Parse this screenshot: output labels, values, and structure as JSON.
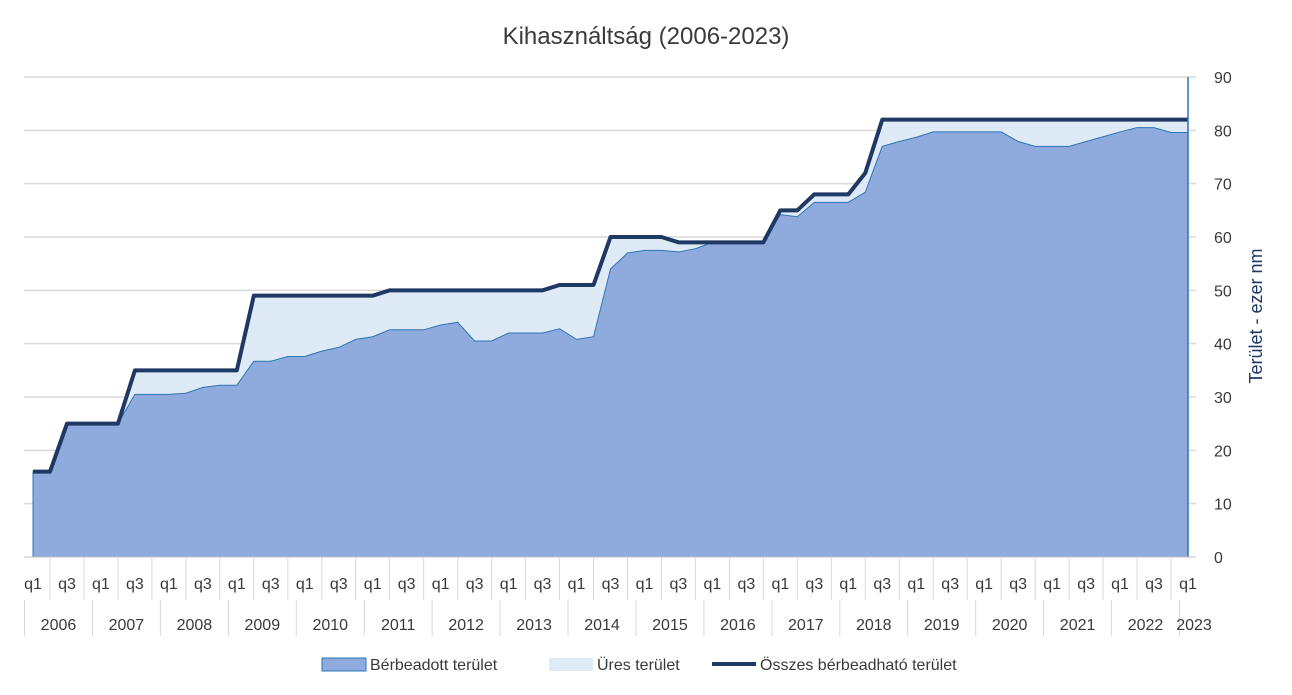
{
  "chart_data": {
    "type": "area",
    "title": "Kihasználtság (2006-2023)",
    "ylabel": "Terület - ezer nm",
    "xlabel": "",
    "ylim": [
      0,
      90
    ],
    "yticks": [
      0,
      10,
      20,
      30,
      40,
      50,
      60,
      70,
      80,
      90
    ],
    "grid": true,
    "legend_position": "bottom",
    "y_axis_side": "right",
    "years": [
      "2006",
      "2007",
      "2008",
      "2009",
      "2010",
      "2011",
      "2012",
      "2013",
      "2014",
      "2015",
      "2016",
      "2017",
      "2018",
      "2019",
      "2020",
      "2021",
      "2022",
      "2023"
    ],
    "quarter_labels": [
      "q1",
      "q3"
    ],
    "x": [
      "2006 q1",
      "2006 q2",
      "2006 q3",
      "2006 q4",
      "2007 q1",
      "2007 q2",
      "2007 q3",
      "2007 q4",
      "2008 q1",
      "2008 q2",
      "2008 q3",
      "2008 q4",
      "2009 q1",
      "2009 q2",
      "2009 q3",
      "2009 q4",
      "2010 q1",
      "2010 q2",
      "2010 q3",
      "2010 q4",
      "2011 q1",
      "2011 q2",
      "2011 q3",
      "2011 q4",
      "2012 q1",
      "2012 q2",
      "2012 q3",
      "2012 q4",
      "2013 q1",
      "2013 q2",
      "2013 q3",
      "2013 q4",
      "2014 q1",
      "2014 q2",
      "2014 q3",
      "2014 q4",
      "2015 q1",
      "2015 q2",
      "2015 q3",
      "2015 q4",
      "2016 q1",
      "2016 q2",
      "2016 q3",
      "2016 q4",
      "2017 q1",
      "2017 q2",
      "2017 q3",
      "2017 q4",
      "2018 q1",
      "2018 q2",
      "2018 q3",
      "2018 q4",
      "2019 q1",
      "2019 q2",
      "2019 q3",
      "2019 q4",
      "2020 q1",
      "2020 q2",
      "2020 q3",
      "2020 q4",
      "2021 q1",
      "2021 q2",
      "2021 q3",
      "2021 q4",
      "2022 q1",
      "2022 q2",
      "2022 q3",
      "2022 q4",
      "2023 q1"
    ],
    "series": [
      {
        "name": "Bérbeadott terület",
        "type": "area",
        "color": "#8faadc",
        "border": "#2e75b6",
        "values": [
          16,
          16,
          25,
          25,
          25,
          25,
          30.5,
          30.5,
          30.5,
          30.7,
          31.8,
          32.2,
          32.2,
          36.7,
          36.7,
          37.6,
          37.6,
          38.6,
          39.3,
          40.8,
          41.3,
          42.6,
          42.6,
          42.6,
          43.5,
          44,
          40.5,
          40.5,
          42,
          42,
          42,
          42.8,
          40.8,
          41.3,
          54,
          57,
          57.5,
          57.5,
          57.2,
          57.8,
          59,
          59,
          59,
          59,
          64.2,
          63.8,
          66.5,
          66.5,
          66.5,
          68.4,
          77,
          77.9,
          78.7,
          79.7,
          79.7,
          79.7,
          79.7,
          79.7,
          77.9,
          77,
          77,
          77,
          77.9,
          78.8,
          79.7,
          80.5,
          80.5,
          79.6,
          79.6
        ]
      },
      {
        "name": "Üres terület",
        "type": "area",
        "color": "#deebf7",
        "values": [
          0,
          0,
          0,
          0,
          0,
          0,
          4.5,
          4.5,
          4.5,
          4.3,
          3.2,
          2.8,
          2.8,
          12.3,
          12.3,
          11.4,
          11.4,
          10.4,
          9.7,
          8.2,
          7.7,
          7.4,
          7.4,
          7.4,
          6.5,
          6,
          9.5,
          9.5,
          8,
          8,
          8,
          8.2,
          10.2,
          9.7,
          6,
          3,
          2.5,
          2.5,
          1.8,
          1.2,
          0,
          0,
          0,
          0,
          0.8,
          1.2,
          1.5,
          1.5,
          1.5,
          3.6,
          5,
          4.1,
          3.3,
          2.3,
          2.3,
          2.3,
          2.3,
          2.3,
          4.1,
          5,
          5,
          5,
          4.1,
          3.2,
          2.3,
          1.5,
          1.5,
          2.4,
          2.4
        ]
      },
      {
        "name": "Összes bérbeadható terület",
        "type": "line",
        "color": "#1f3864",
        "values": [
          16,
          16,
          25,
          25,
          25,
          25,
          35,
          35,
          35,
          35,
          35,
          35,
          35,
          49,
          49,
          49,
          49,
          49,
          49,
          49,
          49,
          50,
          50,
          50,
          50,
          50,
          50,
          50,
          50,
          50,
          50,
          51,
          51,
          51,
          60,
          60,
          60,
          60,
          59,
          59,
          59,
          59,
          59,
          59,
          65,
          65,
          68,
          68,
          68,
          72,
          82,
          82,
          82,
          82,
          82,
          82,
          82,
          82,
          82,
          82,
          82,
          82,
          82,
          82,
          82,
          82,
          82,
          82,
          82
        ]
      }
    ]
  }
}
